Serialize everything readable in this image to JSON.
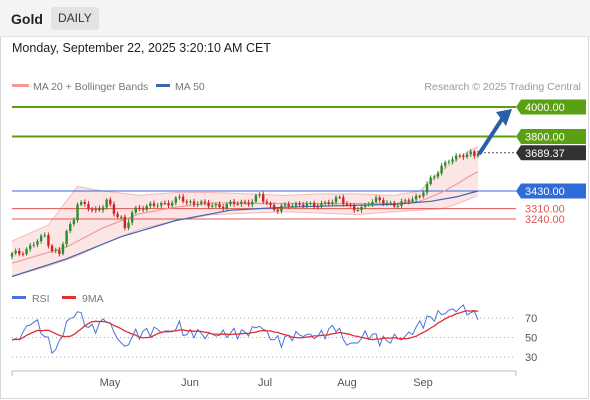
{
  "header": {
    "symbol": "Gold",
    "timeframe": "DAILY",
    "timestamp": "Monday, September 22, 2025 3:20:10 AM CET"
  },
  "legend": {
    "ma20_label": "MA 20 + Bollinger Bands",
    "ma50_label": "MA 50",
    "copyright": "Research © 2025 Trading Central"
  },
  "colors": {
    "green": "#5aa012",
    "blue": "#2f6bd9",
    "red": "#e05555",
    "dark": "#333333",
    "candle_green": "#2e8b2e",
    "candle_red": "#cc2222",
    "band": "#fbdcdc",
    "ma20": "#f29a9a",
    "ma50": "#3a66b0",
    "rsi": "#4a72d8",
    "rsi_ma": "#e03030",
    "arrow": "#2a5fa8"
  },
  "chart_data": {
    "type": "candlestick",
    "instrument": "Gold",
    "timeframe": "DAILY",
    "x_labels": [
      "May",
      "Jun",
      "Jul",
      "Aug",
      "Sep"
    ],
    "price_levels": [
      {
        "price": 4000.0,
        "label": "4000.00",
        "kind": "resistance"
      },
      {
        "price": 3800.0,
        "label": "3800.00",
        "kind": "resistance"
      },
      {
        "price": 3689.37,
        "label": "3689.37",
        "kind": "last"
      },
      {
        "price": 3430.0,
        "label": "3430.00",
        "kind": "pivot"
      },
      {
        "price": 3310.0,
        "label": "3310.00",
        "kind": "support"
      },
      {
        "price": 3240.0,
        "label": "3240.00",
        "kind": "support"
      }
    ],
    "projection": {
      "from": 3689.37,
      "to": 4000.0
    },
    "rsi_panel": {
      "labels": [
        "RSI",
        "9MA"
      ],
      "levels": [
        70,
        50,
        30
      ],
      "level_labels": [
        "70",
        "50",
        "30"
      ],
      "ylim": [
        15,
        90
      ]
    },
    "close_path": [
      [
        0,
        3000
      ],
      [
        2,
        3010
      ],
      [
        5,
        3050
      ],
      [
        9,
        3130
      ],
      [
        11,
        3030
      ],
      [
        13,
        3000
      ],
      [
        15,
        3150
      ],
      [
        17,
        3250
      ],
      [
        18,
        3350
      ],
      [
        20,
        3330
      ],
      [
        22,
        3300
      ],
      [
        24,
        3310
      ],
      [
        26,
        3360
      ],
      [
        28,
        3280
      ],
      [
        30,
        3250
      ],
      [
        31,
        3180
      ],
      [
        33,
        3280
      ],
      [
        35,
        3310
      ],
      [
        38,
        3340
      ],
      [
        41,
        3330
      ],
      [
        44,
        3360
      ],
      [
        46,
        3390
      ],
      [
        48,
        3340
      ],
      [
        51,
        3360
      ],
      [
        54,
        3330
      ],
      [
        57,
        3330
      ],
      [
        60,
        3340
      ],
      [
        63,
        3350
      ],
      [
        66,
        3360
      ],
      [
        68,
        3400
      ],
      [
        69,
        3370
      ],
      [
        71,
        3330
      ],
      [
        73,
        3300
      ],
      [
        76,
        3340
      ],
      [
        79,
        3340
      ],
      [
        82,
        3330
      ],
      [
        85,
        3345
      ],
      [
        88,
        3350
      ],
      [
        90,
        3390
      ],
      [
        92,
        3340
      ],
      [
        94,
        3300
      ],
      [
        96,
        3310
      ],
      [
        98,
        3360
      ],
      [
        100,
        3370
      ],
      [
        102,
        3350
      ],
      [
        105,
        3340
      ],
      [
        108,
        3350
      ],
      [
        110,
        3380
      ],
      [
        112,
        3400
      ],
      [
        114,
        3470
      ],
      [
        116,
        3530
      ],
      [
        118,
        3600
      ],
      [
        120,
        3640
      ],
      [
        122,
        3650
      ],
      [
        124,
        3680
      ],
      [
        126,
        3690
      ],
      [
        127,
        3670
      ],
      [
        128,
        3689.37
      ]
    ],
    "rsi_path": [
      [
        0,
        45
      ],
      [
        2,
        50
      ],
      [
        4,
        60
      ],
      [
        6,
        68
      ],
      [
        8,
        58
      ],
      [
        10,
        45
      ],
      [
        12,
        35
      ],
      [
        13,
        45
      ],
      [
        15,
        65
      ],
      [
        17,
        72
      ],
      [
        18,
        78
      ],
      [
        20,
        65
      ],
      [
        22,
        58
      ],
      [
        24,
        63
      ],
      [
        26,
        70
      ],
      [
        28,
        55
      ],
      [
        30,
        45
      ],
      [
        31,
        38
      ],
      [
        33,
        52
      ],
      [
        36,
        55
      ],
      [
        40,
        58
      ],
      [
        43,
        55
      ],
      [
        46,
        62
      ],
      [
        48,
        52
      ],
      [
        50,
        56
      ],
      [
        53,
        52
      ],
      [
        56,
        53
      ],
      [
        59,
        54
      ],
      [
        62,
        55
      ],
      [
        64,
        54
      ],
      [
        67,
        60
      ],
      [
        68,
        63
      ],
      [
        70,
        54
      ],
      [
        72,
        48
      ],
      [
        74,
        46
      ],
      [
        77,
        52
      ],
      [
        80,
        53
      ],
      [
        83,
        51
      ],
      [
        86,
        54
      ],
      [
        89,
        62
      ],
      [
        91,
        48
      ],
      [
        93,
        42
      ],
      [
        95,
        46
      ],
      [
        97,
        53
      ],
      [
        99,
        52
      ],
      [
        101,
        48
      ],
      [
        103,
        46
      ],
      [
        105,
        50
      ],
      [
        107,
        49
      ],
      [
        109,
        53
      ],
      [
        111,
        60
      ],
      [
        113,
        66
      ],
      [
        115,
        70
      ],
      [
        117,
        73
      ],
      [
        119,
        76
      ],
      [
        121,
        78
      ],
      [
        123,
        80
      ],
      [
        125,
        79
      ],
      [
        126,
        72
      ],
      [
        127,
        75
      ],
      [
        128,
        74
      ]
    ],
    "ma20_path": [
      [
        0,
        2940
      ],
      [
        15,
        3050
      ],
      [
        25,
        3180
      ],
      [
        35,
        3275
      ],
      [
        45,
        3320
      ],
      [
        55,
        3350
      ],
      [
        65,
        3345
      ],
      [
        75,
        3345
      ],
      [
        85,
        3345
      ],
      [
        95,
        3345
      ],
      [
        105,
        3345
      ],
      [
        112,
        3360
      ],
      [
        118,
        3420
      ],
      [
        122,
        3475
      ],
      [
        126,
        3535
      ],
      [
        128,
        3560
      ]
    ],
    "upper_band_path": [
      [
        0,
        3090
      ],
      [
        10,
        3200
      ],
      [
        18,
        3460
      ],
      [
        25,
        3430
      ],
      [
        35,
        3400
      ],
      [
        45,
        3420
      ],
      [
        55,
        3420
      ],
      [
        65,
        3410
      ],
      [
        75,
        3400
      ],
      [
        85,
        3410
      ],
      [
        95,
        3410
      ],
      [
        105,
        3400
      ],
      [
        112,
        3430
      ],
      [
        118,
        3570
      ],
      [
        122,
        3640
      ],
      [
        126,
        3710
      ],
      [
        128,
        3730
      ]
    ],
    "lower_band_path": [
      [
        0,
        2850
      ],
      [
        10,
        2920
      ],
      [
        18,
        2990
      ],
      [
        25,
        3070
      ],
      [
        35,
        3170
      ],
      [
        45,
        3230
      ],
      [
        55,
        3270
      ],
      [
        65,
        3280
      ],
      [
        75,
        3290
      ],
      [
        85,
        3280
      ],
      [
        95,
        3270
      ],
      [
        105,
        3290
      ],
      [
        112,
        3300
      ],
      [
        118,
        3310
      ],
      [
        122,
        3340
      ],
      [
        126,
        3380
      ],
      [
        128,
        3400
      ]
    ],
    "ma50_path": [
      [
        0,
        2850
      ],
      [
        15,
        2970
      ],
      [
        30,
        3120
      ],
      [
        45,
        3230
      ],
      [
        60,
        3300
      ],
      [
        75,
        3320
      ],
      [
        90,
        3330
      ],
      [
        105,
        3340
      ],
      [
        115,
        3360
      ],
      [
        122,
        3390
      ],
      [
        128,
        3430
      ]
    ]
  }
}
